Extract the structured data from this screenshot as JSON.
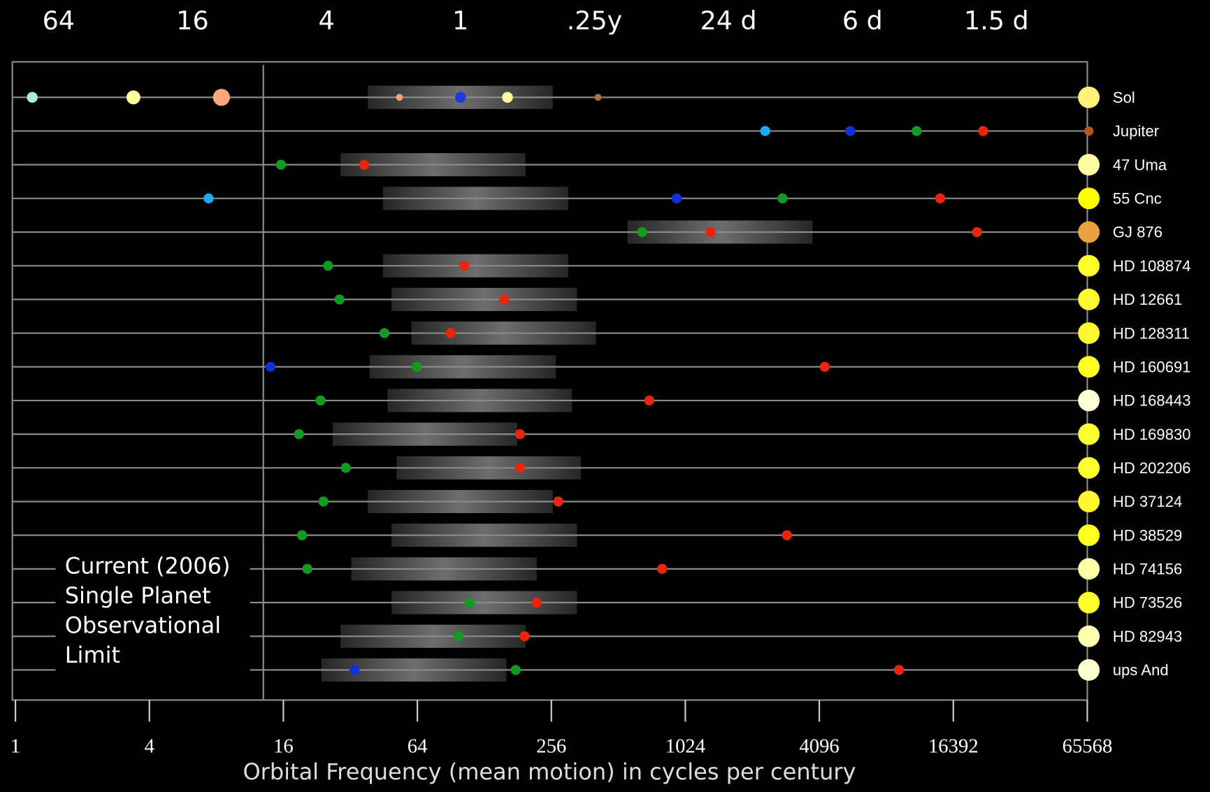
{
  "chart_data": {
    "type": "scatter",
    "xlabel": "Orbital Frequency (mean motion) in cycles per century",
    "xscale": "log",
    "xlim": [
      1,
      65568
    ],
    "xticks": [
      1,
      4,
      16,
      64,
      256,
      1024,
      4096,
      16392,
      65568
    ],
    "x2lim": [
      1,
      65568
    ],
    "x2ticks": [
      {
        "value": 1.5625,
        "label": "64"
      },
      {
        "value": 6.25,
        "label": "16"
      },
      {
        "value": 25,
        "label": "4"
      },
      {
        "value": 100,
        "label": "1"
      },
      {
        "value": 400,
        "label": ".25y"
      },
      {
        "value": 1600,
        "label": "24 d"
      },
      {
        "value": 6400,
        "label": "6 d"
      },
      {
        "value": 25600,
        "label": "1.5 d"
      }
    ],
    "limit": 13,
    "annotation": [
      "Current (2006)",
      "Single Planet",
      "Observational",
      "Limit"
    ],
    "series": [
      {
        "name": "Sol",
        "color": "#fff27a",
        "values": [
          1.19,
          3.39,
          8.43,
          53.2,
          100,
          162.6,
          415
        ],
        "point_colors": [
          "#aaf0d0",
          "#ffffa0",
          "#ffa880",
          "#ffa070",
          "#1a3adf",
          "#fffaa0",
          "#b07040"
        ],
        "sizes": [
          7,
          9,
          11,
          4.5,
          7,
          7,
          4.5
        ],
        "band": [
          38.3,
          260
        ]
      },
      {
        "name": "Jupiter",
        "color": "#b5531b",
        "values": [
          2340,
          5640,
          11210,
          22300
        ],
        "point_colors": [
          "#1ea8ef",
          "#1030d8",
          "#139a20",
          "#e8250e"
        ]
      },
      {
        "name": "47 Uma",
        "color": "#fff9a0",
        "values": [
          15.6,
          36.9
        ],
        "point_colors": [
          "#139a20",
          "#e8250e"
        ],
        "band": [
          28.9,
          196
        ]
      },
      {
        "name": "55 Cnc",
        "color": "#ffff00",
        "values": [
          7.38,
          936,
          2800,
          14300
        ],
        "point_colors": [
          "#1ea8ef",
          "#1030d8",
          "#139a20",
          "#e8250e"
        ],
        "band": [
          44.8,
          305
        ]
      },
      {
        "name": "GJ 876",
        "color": "#e8a040",
        "values": [
          655,
          1330,
          20930
        ],
        "point_colors": [
          "#139a20",
          "#e8250e",
          "#e8250e"
        ],
        "band": [
          562,
          3820
        ]
      },
      {
        "name": "HD 108874",
        "color": "#ffff2a",
        "values": [
          25.4,
          104
        ],
        "point_colors": [
          "#139a20",
          "#e8250e"
        ],
        "band": [
          44.8,
          305
        ]
      },
      {
        "name": "HD 12661",
        "color": "#fff830",
        "values": [
          28.6,
          157
        ],
        "point_colors": [
          "#139a20",
          "#e8250e"
        ],
        "band": [
          48.9,
          334
        ]
      },
      {
        "name": "HD 128311",
        "color": "#fff830",
        "values": [
          45.5,
          90.2
        ],
        "point_colors": [
          "#139a20",
          "#e8250e"
        ],
        "band": [
          60.2,
          406
        ]
      },
      {
        "name": "HD 160691",
        "color": "#ffff22",
        "values": [
          14.0,
          63.6,
          4330
        ],
        "point_colors": [
          "#1030d8",
          "#139a20",
          "#e8250e"
        ],
        "band": [
          39,
          268
        ]
      },
      {
        "name": "HD 168443",
        "color": "#ffffd8",
        "values": [
          23.5,
          705
        ],
        "point_colors": [
          "#139a20",
          "#e8250e"
        ],
        "band": [
          47,
          317
        ]
      },
      {
        "name": "HD 169830",
        "color": "#ffff30",
        "values": [
          18.8,
          185
        ],
        "point_colors": [
          "#139a20",
          "#e8250e"
        ],
        "band": [
          26.6,
          180
        ]
      },
      {
        "name": "HD 202206",
        "color": "#ffff30",
        "values": [
          30.5,
          185
        ],
        "point_colors": [
          "#139a20",
          "#e8250e"
        ],
        "band": [
          51.6,
          348
        ]
      },
      {
        "name": "HD 37124",
        "color": "#fff830",
        "values": [
          24.2,
          275
        ],
        "point_colors": [
          "#139a20",
          "#e8250e"
        ],
        "band": [
          38.3,
          260
        ]
      },
      {
        "name": "HD 38529",
        "color": "#ffff22",
        "values": [
          19.4,
          2930
        ],
        "point_colors": [
          "#139a20",
          "#e8250e"
        ],
        "band": [
          49,
          334
        ]
      },
      {
        "name": "HD 74156",
        "color": "#ffffa8",
        "values": [
          20.5,
          806
        ],
        "point_colors": [
          "#139a20",
          "#e8250e"
        ],
        "band": [
          32.3,
          220
        ]
      },
      {
        "name": "HD 73526",
        "color": "#ffff2a",
        "values": [
          110,
          220
        ],
        "point_colors": [
          "#139a20",
          "#e8250e"
        ],
        "band": [
          49,
          334
        ]
      },
      {
        "name": "HD 82943",
        "color": "#ffffb0",
        "values": [
          97.9,
          194
        ],
        "point_colors": [
          "#139a20",
          "#e8250e"
        ],
        "band": [
          28.9,
          196
        ]
      },
      {
        "name": "ups And",
        "color": "#ffffd0",
        "values": [
          33.4,
          177,
          9340
        ],
        "point_colors": [
          "#1030d8",
          "#139a20",
          "#e8250e"
        ],
        "band": [
          23.7,
          161
        ]
      }
    ]
  }
}
